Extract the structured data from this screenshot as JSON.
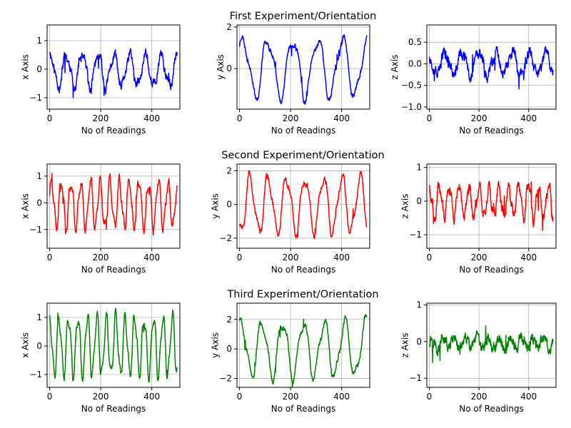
{
  "rows": [
    {
      "title": "First Experiment/Orientation",
      "color": "#0000ff"
    },
    {
      "title": "Second Experiment/Orientation",
      "color": "#ff0000"
    },
    {
      "title": "Third Experiment/Orientation",
      "color": "#008000"
    }
  ],
  "chart_data": [
    {
      "type": "line",
      "row": 0,
      "col": 0,
      "xlabel": "No of Readings",
      "ylabel": "x Axis",
      "xlim": [
        -10,
        510
      ],
      "ylim": [
        -1.4,
        1.55
      ],
      "xticks": [
        0,
        200,
        400
      ],
      "yticks": [
        -1,
        0,
        1
      ],
      "series": [
        {
          "color": "#0000ff",
          "gen": {
            "n": 500,
            "period": 62,
            "amp": 0.55,
            "offset": -0.05,
            "noise": 0.25,
            "phase": 1.2,
            "seed": 11
          }
        }
      ]
    },
    {
      "type": "line",
      "row": 0,
      "col": 1,
      "xlabel": "No of Readings",
      "ylabel": "y Axis",
      "xlim": [
        -10,
        510
      ],
      "ylim": [
        -1.95,
        2.1
      ],
      "xticks": [
        0,
        200,
        400
      ],
      "yticks": [
        0,
        2
      ],
      "series": [
        {
          "color": "#0000ff",
          "gen": {
            "n": 500,
            "period": 97,
            "amp": 1.35,
            "offset": 0.05,
            "noise": 0.18,
            "phase": 0.6,
            "seed": 23
          }
        }
      ]
    },
    {
      "type": "line",
      "row": 0,
      "col": 2,
      "xlabel": "No of Readings",
      "ylabel": "z Axis",
      "xlim": [
        -10,
        510
      ],
      "ylim": [
        -1.05,
        0.9
      ],
      "xticks": [
        0,
        200,
        400
      ],
      "yticks": [
        -1.0,
        -0.5,
        0.0,
        0.5
      ],
      "series": [
        {
          "color": "#0000ff",
          "gen": {
            "n": 500,
            "period": 68,
            "amp": 0.25,
            "offset": 0.0,
            "noise": 0.2,
            "phase": 2.0,
            "seed": 37
          }
        }
      ]
    },
    {
      "type": "line",
      "row": 1,
      "col": 0,
      "xlabel": "No of Readings",
      "ylabel": "x Axis",
      "xlim": [
        -10,
        510
      ],
      "ylim": [
        -1.7,
        1.45
      ],
      "xticks": [
        0,
        200,
        400
      ],
      "yticks": [
        -1,
        0,
        1
      ],
      "series": [
        {
          "color": "#ff0000",
          "gen": {
            "n": 500,
            "period": 38,
            "amp": 0.85,
            "offset": -0.05,
            "noise": 0.2,
            "phase": 0.3,
            "seed": 41
          }
        }
      ]
    },
    {
      "type": "line",
      "row": 1,
      "col": 1,
      "xlabel": "No of Readings",
      "ylabel": "y Axis",
      "xlim": [
        -10,
        510
      ],
      "ylim": [
        -2.6,
        2.4
      ],
      "xticks": [
        0,
        200,
        400
      ],
      "yticks": [
        -2,
        0,
        2
      ],
      "series": [
        {
          "color": "#ff0000",
          "gen": {
            "n": 500,
            "period": 72,
            "amp": 1.6,
            "offset": 0.0,
            "noise": 0.25,
            "phase": 4.3,
            "seed": 53
          }
        }
      ]
    },
    {
      "type": "line",
      "row": 1,
      "col": 2,
      "xlabel": "No of Readings",
      "ylabel": "z Axis",
      "xlim": [
        -10,
        510
      ],
      "ylim": [
        -1.4,
        1.1
      ],
      "xticks": [
        0,
        200,
        400
      ],
      "yticks": [
        -1,
        0,
        1
      ],
      "series": [
        {
          "color": "#ff0000",
          "gen": {
            "n": 500,
            "period": 40,
            "amp": 0.45,
            "offset": 0.0,
            "noise": 0.22,
            "phase": 1.6,
            "seed": 67
          }
        }
      ]
    },
    {
      "type": "line",
      "row": 2,
      "col": 0,
      "xlabel": "No of Readings",
      "ylabel": "x Axis",
      "xlim": [
        -10,
        510
      ],
      "ylim": [
        -1.45,
        1.5
      ],
      "xticks": [
        0,
        200,
        400
      ],
      "yticks": [
        -1,
        0,
        1
      ],
      "series": [
        {
          "color": "#008000",
          "gen": {
            "n": 500,
            "period": 37,
            "amp": 1.0,
            "offset": 0.0,
            "noise": 0.15,
            "phase": 1.57,
            "seed": 71
          }
        }
      ]
    },
    {
      "type": "line",
      "row": 2,
      "col": 1,
      "xlabel": "No of Readings",
      "ylabel": "y Axis",
      "xlim": [
        -10,
        510
      ],
      "ylim": [
        -2.6,
        3.1
      ],
      "xticks": [
        0,
        200,
        400
      ],
      "yticks": [
        -2,
        0,
        2
      ],
      "series": [
        {
          "color": "#008000",
          "gen": {
            "n": 500,
            "period": 81,
            "amp": 1.8,
            "offset": 0.0,
            "noise": 0.25,
            "phase": 1.0,
            "seed": 83
          }
        }
      ]
    },
    {
      "type": "line",
      "row": 2,
      "col": 2,
      "xlabel": "No of Readings",
      "ylabel": "z Axis",
      "xlim": [
        -10,
        510
      ],
      "ylim": [
        -1.25,
        1.05
      ],
      "xticks": [
        0,
        200,
        400
      ],
      "yticks": [
        -1,
        0,
        1
      ],
      "series": [
        {
          "color": "#008000",
          "gen": {
            "n": 500,
            "period": 45,
            "amp": 0.15,
            "offset": -0.05,
            "noise": 0.22,
            "phase": 0.0,
            "seed": 97
          }
        }
      ]
    }
  ]
}
